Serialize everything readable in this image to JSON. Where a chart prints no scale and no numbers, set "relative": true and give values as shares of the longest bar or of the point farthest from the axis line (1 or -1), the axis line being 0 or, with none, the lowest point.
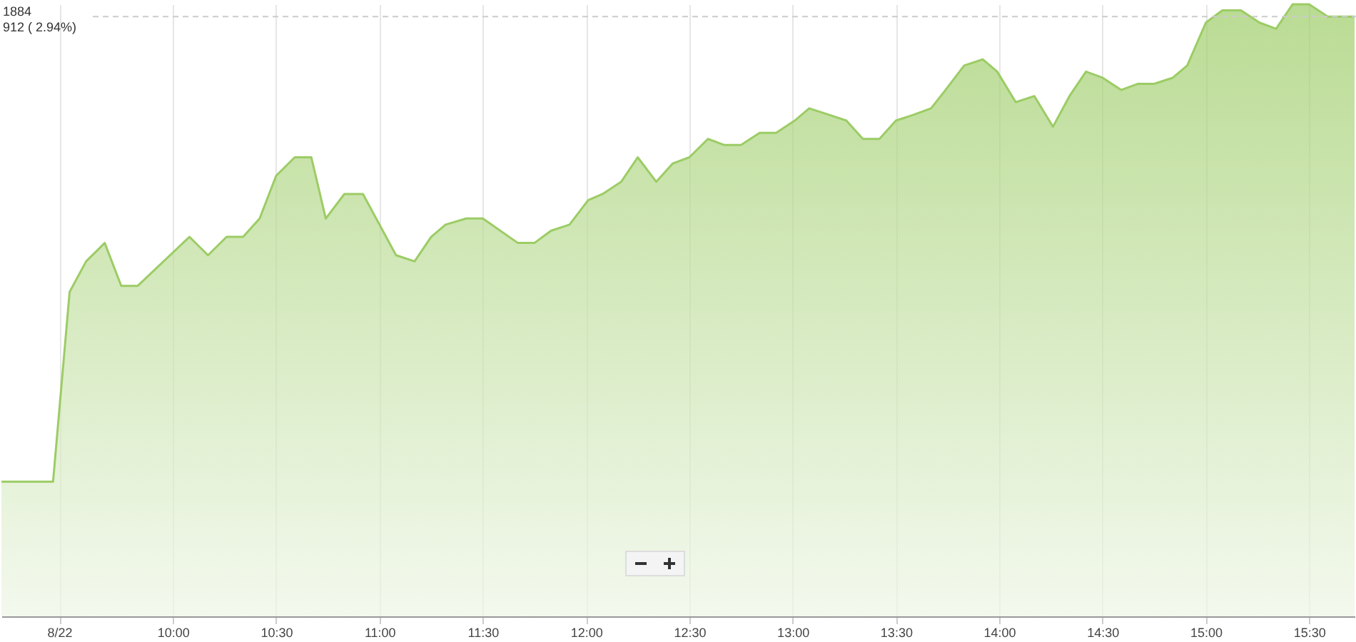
{
  "chart_data": {
    "type": "area",
    "relative": true,
    "color": "#9ccc65",
    "x": [
      9.17,
      9.42,
      9.5,
      9.58,
      9.67,
      9.75,
      9.83,
      10.08,
      10.17,
      10.26,
      10.34,
      10.42,
      10.5,
      10.59,
      10.67,
      10.74,
      10.83,
      10.92,
      11.08,
      11.17,
      11.25,
      11.32,
      11.42,
      11.5,
      11.67,
      11.75,
      11.83,
      11.92,
      12.01,
      12.08,
      12.17,
      12.25,
      12.34,
      12.42,
      12.5,
      12.59,
      12.67,
      12.75,
      12.84,
      12.92,
      13.01,
      13.08,
      13.17,
      13.26,
      13.34,
      13.42,
      13.5,
      13.59,
      13.67,
      13.74,
      13.83,
      13.92,
      13.99,
      14.08,
      14.17,
      14.26,
      14.34,
      14.42,
      14.5,
      14.59,
      14.67,
      14.75,
      14.84,
      14.91,
      15.0,
      15.08,
      15.17,
      15.26,
      15.34,
      15.42,
      15.5,
      15.59,
      15.72
    ],
    "values": [
      0.22,
      0.22,
      0.53,
      0.58,
      0.61,
      0.54,
      0.54,
      0.62,
      0.59,
      0.62,
      0.62,
      0.65,
      0.72,
      0.75,
      0.75,
      0.65,
      0.69,
      0.69,
      0.59,
      0.58,
      0.62,
      0.64,
      0.65,
      0.65,
      0.61,
      0.61,
      0.63,
      0.64,
      0.68,
      0.69,
      0.71,
      0.75,
      0.71,
      0.74,
      0.75,
      0.78,
      0.77,
      0.77,
      0.79,
      0.79,
      0.81,
      0.83,
      0.82,
      0.81,
      0.78,
      0.78,
      0.81,
      0.82,
      0.83,
      0.86,
      0.9,
      0.91,
      0.89,
      0.84,
      0.85,
      0.8,
      0.85,
      0.89,
      0.88,
      0.86,
      0.87,
      0.87,
      0.88,
      0.9,
      0.97,
      0.99,
      0.99,
      0.97,
      0.96,
      1.0,
      1.0,
      0.98,
      0.98
    ],
    "xlim": [
      9.17,
      15.72
    ],
    "xticks": [
      {
        "value": 9.45,
        "label": "8/22"
      },
      {
        "value": 10,
        "label": "10:00"
      },
      {
        "value": 10.5,
        "label": "10:30"
      },
      {
        "value": 11,
        "label": "11:00"
      },
      {
        "value": 11.5,
        "label": "11:30"
      },
      {
        "value": 12,
        "label": "12:00"
      },
      {
        "value": 12.5,
        "label": "12:30"
      },
      {
        "value": 13,
        "label": "13:00"
      },
      {
        "value": 13.5,
        "label": "13:30"
      },
      {
        "value": 14,
        "label": "14:00"
      },
      {
        "value": 14.5,
        "label": "14:30"
      },
      {
        "value": 15,
        "label": "15:00"
      },
      {
        "value": 15.5,
        "label": "15:30"
      }
    ],
    "grid": "x",
    "ref_lines": [
      {
        "axis": "y",
        "value": 0.98,
        "line_style": "dashed",
        "color": "#cccccc"
      }
    ],
    "annotations": [
      "1884",
      "912 ( 2.94%)"
    ]
  }
}
